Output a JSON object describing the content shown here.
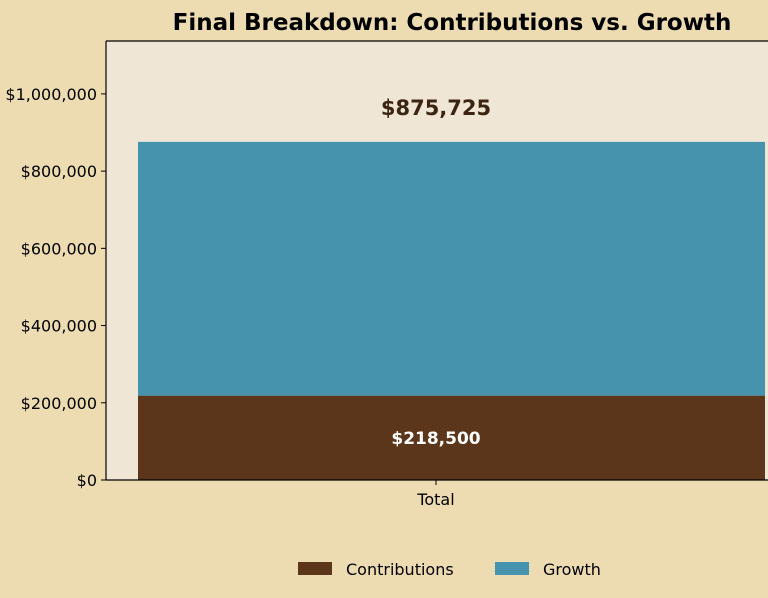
{
  "chart_data": {
    "type": "bar",
    "stacked": true,
    "title": "Final Breakdown: Contributions vs. Growth",
    "categories": [
      "Total"
    ],
    "series": [
      {
        "name": "Contributions",
        "values": [
          218500
        ],
        "color": "#5b361a",
        "label": "$218,500",
        "label_color": "#ffffff"
      },
      {
        "name": "Growth",
        "values": [
          657225
        ],
        "color": "#4593ad"
      }
    ],
    "total_label": "$875,725",
    "total_label_color": "#3b2510",
    "ylim": [
      0,
      1137000
    ],
    "yticks": [
      0,
      200000,
      400000,
      600000,
      800000,
      1000000
    ],
    "ytick_labels": [
      "$0",
      "$200,000",
      "$400,000",
      "$600,000",
      "$800,000",
      "$1,000,000"
    ],
    "xlabel": "",
    "ylabel": "",
    "legend_position": "bottom-center",
    "plot_background": "#f0e6d6",
    "page_background": "#eddcb2"
  }
}
